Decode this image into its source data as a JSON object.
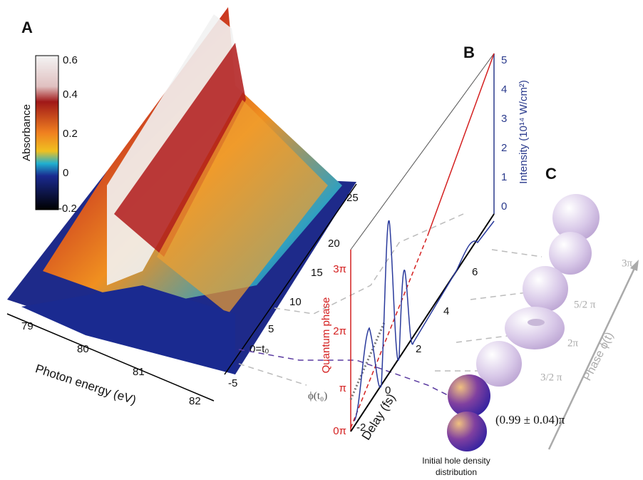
{
  "panel_a": {
    "label": "A",
    "colorbar": {
      "title": "Absorbance",
      "ticks": [
        "0.6",
        "0.4",
        "0.2",
        "0",
        "-0.2"
      ]
    },
    "x_axis": {
      "title": "Photon energy (eV)",
      "ticks": [
        "79",
        "80",
        "81",
        "82"
      ]
    },
    "delay_ticks": [
      "25",
      "20",
      "15",
      "10",
      "5",
      "0=t₀",
      "-5"
    ]
  },
  "panel_b": {
    "label": "B",
    "intensity_axis": {
      "title": "Intensity (10¹⁴ W/cm²)",
      "ticks": [
        "0",
        "1",
        "2",
        "3",
        "4",
        "5"
      ]
    },
    "phase_axis": {
      "title": "Quantum phase",
      "ticks": [
        "0π",
        "π",
        "2π",
        "3π"
      ]
    },
    "delay_axis": {
      "title": "Delay (fs)",
      "ticks": [
        "-2",
        "0",
        "2",
        "4",
        "6"
      ]
    },
    "phase_marker": "ϕ(t₀)"
  },
  "panel_c": {
    "label": "C",
    "axis_title": "Phase ϕ(t)",
    "phase_labels": [
      "3π",
      "5/2 π",
      "2π",
      "3/2 π"
    ],
    "initial_phase": "(0.99 ± 0.04)π",
    "caption": [
      "Initial hole density",
      "distribution"
    ]
  }
}
